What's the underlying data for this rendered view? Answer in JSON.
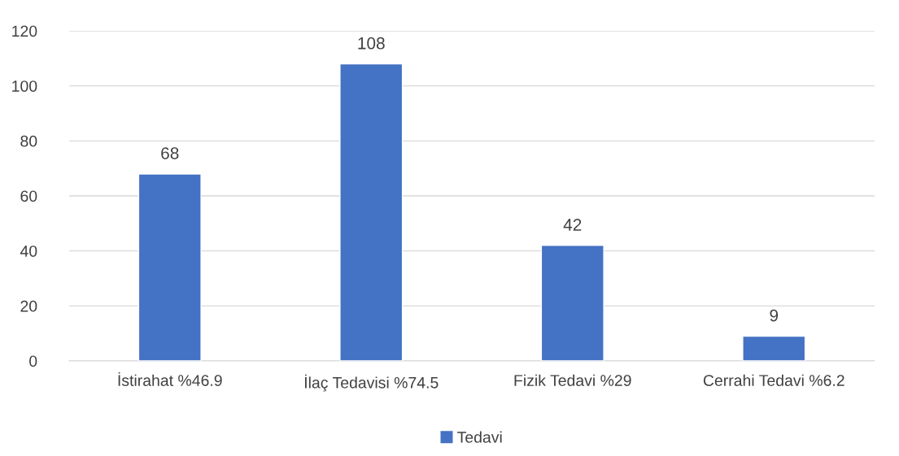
{
  "chart_data": {
    "type": "bar",
    "categories": [
      "İstirahat %46.9",
      "İlaç Tedavisi %74.5",
      "Fizik Tedavi %29",
      "Cerrahi Tedavi %6.2"
    ],
    "series": [
      {
        "name": "Tedavi",
        "color": "#4472c4",
        "values": [
          68,
          108,
          42,
          9
        ]
      }
    ],
    "ylim": [
      0,
      120
    ],
    "yticks": [
      0,
      20,
      40,
      60,
      80,
      100,
      120
    ],
    "grid": "y",
    "legend": "bottom",
    "data_labels": true
  }
}
